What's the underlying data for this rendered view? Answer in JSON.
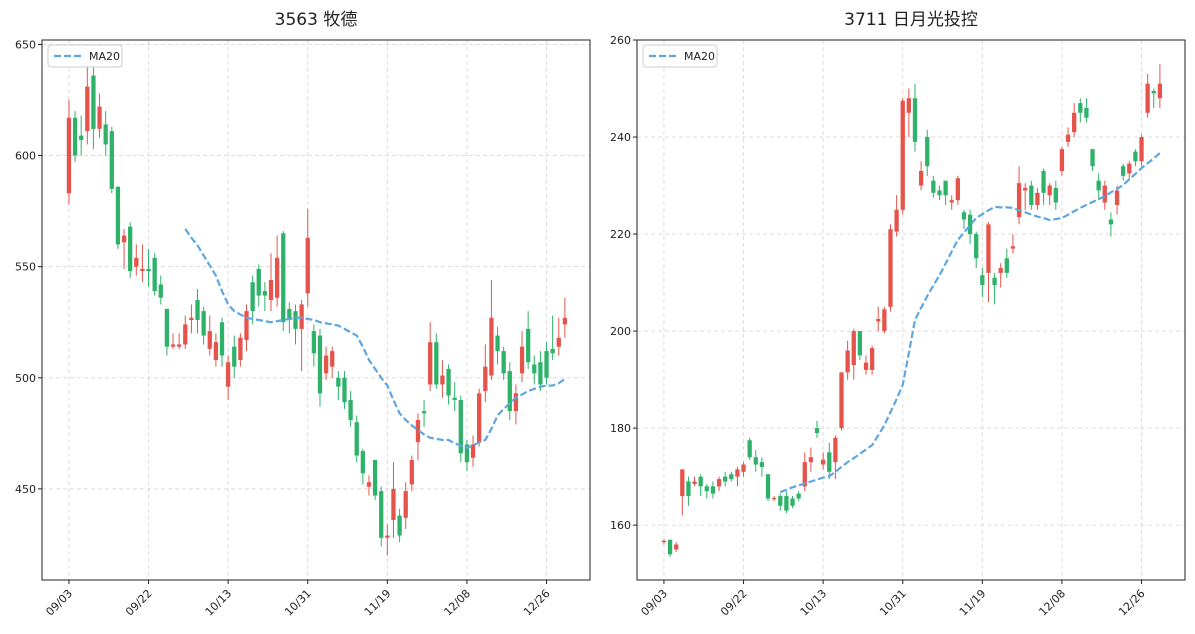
{
  "chart_data": [
    {
      "type": "candlestick",
      "title": "3563 牧德",
      "categories": [
        "09/03",
        null,
        null,
        null,
        null,
        null,
        null,
        null,
        null,
        null,
        null,
        null,
        null,
        "09/22",
        null,
        null,
        null,
        null,
        null,
        null,
        null,
        null,
        null,
        null,
        null,
        null,
        "10/13",
        null,
        null,
        null,
        null,
        null,
        null,
        null,
        null,
        null,
        null,
        null,
        null,
        "10/31",
        null,
        null,
        null,
        null,
        null,
        null,
        null,
        null,
        null,
        null,
        null,
        null,
        "11/19",
        null,
        null,
        null,
        null,
        null,
        null,
        null,
        null,
        null,
        null,
        null,
        null,
        "12/08",
        null,
        null,
        null,
        null,
        null,
        null,
        null,
        null,
        null,
        null,
        null,
        null,
        "12/26",
        null,
        null,
        null
      ],
      "open": [
        583,
        617,
        609,
        611,
        636,
        612,
        614,
        611,
        586,
        561,
        568,
        550,
        548,
        549,
        554,
        542,
        531,
        514,
        514,
        515,
        526,
        535,
        530,
        513,
        508,
        525,
        496,
        514,
        508,
        517,
        543,
        549,
        539,
        535,
        536,
        565,
        531,
        530,
        522,
        538,
        521,
        519,
        502,
        505,
        500,
        500,
        490,
        480,
        467,
        451,
        463,
        449,
        428,
        436,
        438,
        437,
        452,
        471,
        485,
        497,
        516,
        497,
        504,
        491,
        490,
        470,
        464,
        471,
        494,
        501,
        519,
        512,
        503,
        485,
        502,
        522,
        506,
        507,
        512,
        513,
        514,
        524
      ],
      "high": [
        625,
        620,
        618,
        641,
        640,
        628,
        620,
        613,
        586,
        567,
        570,
        560,
        560,
        558,
        556,
        546,
        531,
        520,
        520,
        528,
        533,
        540,
        532,
        528,
        520,
        527,
        510,
        519,
        520,
        533,
        546,
        551,
        543,
        556,
        564,
        566,
        534,
        533,
        535,
        576,
        524,
        522,
        514,
        514,
        503,
        503,
        494,
        483,
        468,
        456,
        463,
        451,
        434,
        462,
        441,
        453,
        465,
        484,
        490,
        525,
        520,
        508,
        506,
        498,
        492,
        472,
        474,
        495,
        515,
        544,
        523,
        514,
        507,
        497,
        521,
        530,
        510,
        512,
        516,
        528,
        527,
        536
      ],
      "low": [
        578,
        597,
        600,
        605,
        603,
        608,
        600,
        583,
        558,
        549,
        545,
        546,
        543,
        541,
        537,
        533,
        510,
        513,
        513,
        513,
        520,
        520,
        515,
        510,
        505,
        505,
        490,
        500,
        505,
        512,
        524,
        532,
        530,
        530,
        532,
        521,
        520,
        515,
        503,
        532,
        505,
        487,
        499,
        500,
        490,
        486,
        478,
        462,
        452,
        447,
        445,
        424,
        420,
        428,
        426,
        432,
        449,
        463,
        478,
        494,
        495,
        491,
        488,
        485,
        462,
        458,
        460,
        469,
        489,
        499,
        506,
        499,
        481,
        479,
        498,
        504,
        497,
        494,
        497,
        508,
        510,
        518
      ],
      "close": [
        617,
        600,
        607,
        631,
        612,
        622,
        605,
        585,
        560,
        564,
        548,
        554,
        549,
        548,
        539,
        536,
        514,
        515,
        515,
        524,
        527,
        526,
        519,
        521,
        516,
        510,
        507,
        505,
        518,
        530,
        530,
        537,
        537,
        544,
        554,
        525,
        526,
        522,
        533,
        563,
        511,
        493,
        510,
        512,
        496,
        489,
        481,
        465,
        457,
        453,
        447,
        428,
        429,
        450,
        429,
        449,
        463,
        481,
        484,
        516,
        497,
        501,
        492,
        490,
        466,
        462,
        470,
        493,
        505,
        527,
        512,
        502,
        485,
        493,
        514,
        507,
        502,
        497,
        500,
        511,
        518,
        527
      ],
      "series": [
        {
          "name": "MA20",
          "color": "#5ea6e0",
          "values": [
            null,
            null,
            null,
            null,
            null,
            null,
            null,
            null,
            null,
            null,
            null,
            null,
            null,
            null,
            null,
            null,
            null,
            null,
            null,
            567,
            563,
            559.6,
            555,
            550.5,
            546,
            539,
            533,
            530,
            528.5,
            527,
            526.5,
            526,
            525.5,
            525,
            525.5,
            526,
            526.5,
            527,
            527,
            526.5,
            526,
            525,
            524.5,
            524,
            523.5,
            522,
            520.5,
            519,
            514,
            508,
            504,
            500,
            496.5,
            490,
            484,
            481,
            478.5,
            476.5,
            474.5,
            473,
            472.5,
            472,
            472,
            470.5,
            469.5,
            468.5,
            469.5,
            471,
            472,
            477,
            483,
            486,
            488.5,
            491,
            492.5,
            494,
            495,
            496,
            496.5,
            496.5,
            497.5,
            499.5
          ]
        }
      ],
      "up_color": "#e5534b",
      "down_color": "#2eb26a",
      "ylim": [
        409,
        652
      ],
      "yticks": [
        450,
        500,
        550,
        600,
        650
      ],
      "grid": true,
      "legend": "upper left"
    },
    {
      "type": "candlestick",
      "title": "3711 日月光投控",
      "categories": [
        "09/03",
        null,
        null,
        null,
        null,
        null,
        null,
        null,
        null,
        null,
        null,
        null,
        null,
        "09/22",
        null,
        null,
        null,
        null,
        null,
        null,
        null,
        null,
        null,
        null,
        null,
        null,
        "10/13",
        null,
        null,
        null,
        null,
        null,
        null,
        null,
        null,
        null,
        null,
        null,
        null,
        "10/31",
        null,
        null,
        null,
        null,
        null,
        null,
        null,
        null,
        null,
        null,
        null,
        null,
        "11/19",
        null,
        null,
        null,
        null,
        null,
        null,
        null,
        null,
        null,
        null,
        null,
        null,
        "12/08",
        null,
        null,
        null,
        null,
        null,
        null,
        null,
        null,
        null,
        null,
        null,
        null,
        "12/26",
        null,
        null,
        null
      ],
      "open": [
        156.5,
        157,
        155,
        166,
        169,
        168.5,
        170,
        168,
        168,
        168,
        170,
        170.5,
        170,
        171,
        177.5,
        174,
        173,
        170.5,
        165.5,
        166,
        166,
        165.5,
        166.5,
        168,
        173,
        180,
        172.5,
        175,
        173,
        180,
        191.5,
        193,
        200,
        192,
        192,
        202,
        200,
        205,
        220.5,
        225,
        245,
        248,
        230,
        240,
        231,
        229,
        231,
        226.5,
        227,
        224.5,
        224,
        220,
        211.5,
        212,
        211,
        212,
        215,
        217,
        223.5,
        229,
        230,
        226,
        233,
        228,
        229.5,
        233,
        239,
        241,
        247,
        246,
        237.5,
        231,
        226.5,
        223,
        226,
        234,
        232.5,
        237,
        235,
        245,
        249.5,
        248
      ],
      "high": [
        157,
        157,
        156.5,
        171.5,
        170,
        170,
        170.5,
        168.5,
        169,
        170,
        171,
        171,
        172,
        173,
        178,
        175.5,
        174,
        170.5,
        166,
        166.5,
        167,
        166,
        167,
        175,
        176,
        181.5,
        175,
        177,
        178.5,
        191.5,
        198,
        200.5,
        200,
        195,
        197,
        205,
        205,
        222,
        228,
        248,
        250,
        251,
        235,
        241.5,
        232,
        230,
        231,
        228,
        232,
        225,
        225,
        220.5,
        213,
        222.5,
        212,
        214,
        217,
        220,
        234,
        230.5,
        231,
        229.5,
        233.5,
        230.5,
        231,
        238,
        242,
        247,
        248,
        248,
        237.5,
        232.5,
        231,
        224.5,
        230,
        234.5,
        235,
        237.5,
        240.5,
        253,
        250,
        255
      ],
      "low": [
        156,
        153.5,
        154.5,
        162,
        164,
        168,
        166,
        165.5,
        165.5,
        167,
        168,
        169,
        168,
        170,
        173.5,
        171,
        170,
        165,
        165,
        163,
        162.5,
        163.5,
        165,
        167,
        171,
        178,
        171.5,
        169.5,
        169.5,
        179.5,
        190,
        190,
        194,
        191,
        191,
        200,
        199.5,
        204,
        219.5,
        224,
        240,
        237,
        229,
        232,
        227.5,
        227,
        226,
        225,
        226,
        221,
        218,
        213,
        207,
        206,
        205.5,
        209,
        211,
        216,
        222,
        225,
        225,
        225,
        226,
        226,
        225,
        232,
        238,
        240,
        243,
        243,
        233,
        227,
        225,
        219.5,
        224,
        231,
        231,
        234,
        234,
        244,
        246,
        246
      ],
      "close": [
        156.8,
        154,
        156,
        171.5,
        166,
        169,
        168,
        167,
        166.5,
        169.5,
        169,
        169.5,
        171.5,
        172.5,
        174,
        172.5,
        172,
        165.5,
        165.6,
        164,
        163,
        164,
        165.5,
        173,
        174,
        179,
        173.5,
        171,
        178,
        191.5,
        196,
        200,
        195,
        193.5,
        196.5,
        202.5,
        204.5,
        221,
        225,
        247.5,
        248,
        239,
        233,
        234,
        228.5,
        228,
        228,
        227,
        231.5,
        223,
        220,
        215,
        209.5,
        222,
        209.5,
        213,
        212,
        217.5,
        230.5,
        229.5,
        226,
        228.5,
        228.5,
        230,
        226.5,
        237.5,
        240.5,
        245,
        245,
        244,
        234,
        229,
        230,
        222,
        229,
        232,
        234.5,
        235,
        240,
        251,
        249,
        251
      ],
      "series": [
        {
          "name": "MA20",
          "color": "#5ea6e0",
          "values": [
            null,
            null,
            null,
            null,
            null,
            null,
            null,
            null,
            null,
            null,
            null,
            null,
            null,
            null,
            null,
            null,
            null,
            null,
            null,
            166.8,
            167.3,
            167.8,
            168.2,
            168.6,
            169,
            169.4,
            169.8,
            170.1,
            171,
            172,
            173,
            173.8,
            174.7,
            175.6,
            176.5,
            178.5,
            180.6,
            183.3,
            186,
            188.9,
            195.5,
            202.3,
            204.8,
            207.2,
            209.4,
            211.5,
            213.9,
            216.4,
            218.8,
            220.3,
            221.8,
            223.3,
            224.1,
            224.9,
            225.6,
            225.5,
            225.5,
            225.4,
            224.9,
            224.5,
            224,
            223.6,
            223.3,
            222.9,
            223.1,
            223.3,
            224,
            224.7,
            225.4,
            226,
            226.6,
            227.2,
            227.8,
            228.6,
            229.3,
            230.1,
            231.3,
            232.4,
            233.6,
            234.6,
            235.6,
            236.7
          ]
        }
      ],
      "up_color": "#e5534b",
      "down_color": "#2eb26a",
      "ylim": [
        148.7,
        260
      ],
      "yticks": [
        160,
        180,
        200,
        220,
        240,
        260
      ],
      "grid": true,
      "legend": "upper left"
    }
  ]
}
